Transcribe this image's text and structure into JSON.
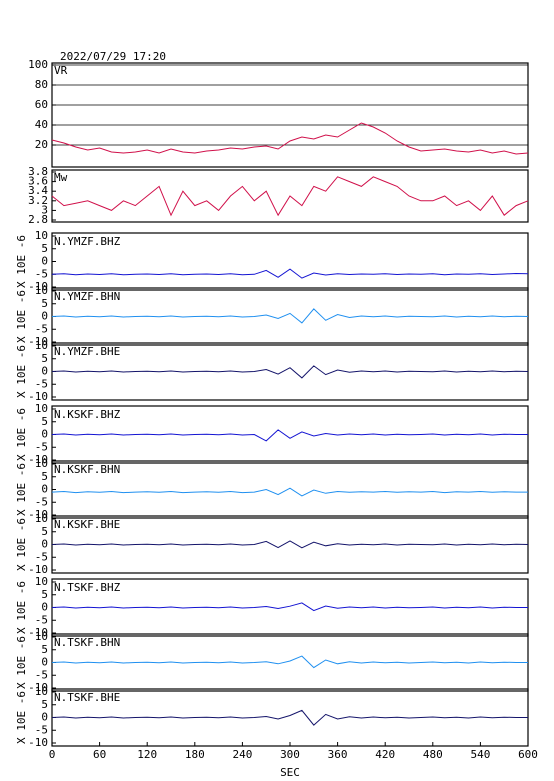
{
  "chart_data": [
    {
      "type": "line",
      "title": "2022/07/29 17:20",
      "grid": true,
      "xlim": [
        0,
        600
      ],
      "ylim": [
        0,
        100
      ],
      "yticks": [
        20,
        40,
        60,
        80,
        100
      ],
      "x": [
        0,
        15,
        30,
        45,
        60,
        75,
        90,
        105,
        120,
        135,
        150,
        165,
        180,
        195,
        210,
        225,
        240,
        255,
        270,
        285,
        300,
        315,
        330,
        345,
        360,
        375,
        390,
        405,
        420,
        435,
        450,
        465,
        480,
        495,
        510,
        525,
        540,
        555,
        570,
        585,
        600
      ],
      "series": [
        {
          "name": "VR",
          "color": "#d0104a",
          "values": [
            25,
            22,
            18,
            15,
            17,
            13,
            12,
            13,
            15,
            12,
            16,
            13,
            12,
            14,
            15,
            17,
            16,
            18,
            19,
            16,
            24,
            28,
            26,
            30,
            28,
            35,
            42,
            38,
            32,
            24,
            18,
            14,
            15,
            16,
            14,
            13,
            15,
            12,
            14,
            11,
            12
          ]
        }
      ]
    },
    {
      "type": "line",
      "xlim": [
        0,
        600
      ],
      "ylim": [
        2.8,
        3.8
      ],
      "yticks": [
        2.8,
        3.0,
        3.2,
        3.4,
        3.6,
        3.8
      ],
      "x": [
        0,
        15,
        30,
        45,
        60,
        75,
        90,
        105,
        120,
        135,
        150,
        165,
        180,
        195,
        210,
        225,
        240,
        255,
        270,
        285,
        300,
        315,
        330,
        345,
        360,
        375,
        390,
        405,
        420,
        435,
        450,
        465,
        480,
        495,
        510,
        525,
        540,
        555,
        570,
        585,
        600
      ],
      "series": [
        {
          "name": "Mw",
          "color": "#d0104a",
          "values": [
            3.3,
            3.1,
            3.15,
            3.2,
            3.1,
            3.0,
            3.2,
            3.1,
            3.3,
            3.5,
            2.9,
            3.4,
            3.1,
            3.2,
            3.0,
            3.3,
            3.5,
            3.2,
            3.4,
            2.9,
            3.3,
            3.1,
            3.5,
            3.4,
            3.7,
            3.6,
            3.5,
            3.7,
            3.6,
            3.5,
            3.3,
            3.2,
            3.2,
            3.3,
            3.1,
            3.2,
            3.0,
            3.3,
            2.9,
            3.1,
            3.2
          ]
        }
      ]
    },
    {
      "type": "line",
      "ylabel": "X 10E -6",
      "xlim": [
        0,
        600
      ],
      "ylim": [
        -10,
        10
      ],
      "yticks": [
        -10,
        -5,
        0,
        5,
        10
      ],
      "x": [
        0,
        15,
        30,
        45,
        60,
        75,
        90,
        105,
        120,
        135,
        150,
        165,
        180,
        195,
        210,
        225,
        240,
        255,
        270,
        285,
        300,
        315,
        330,
        345,
        360,
        375,
        390,
        405,
        420,
        435,
        450,
        465,
        480,
        495,
        510,
        525,
        540,
        555,
        570,
        585,
        600
      ],
      "series": [
        {
          "name": "N.YMZF.BHZ",
          "color": "#1414d2",
          "values": [
            -5,
            -4.8,
            -5.2,
            -4.9,
            -5.1,
            -4.8,
            -5.2,
            -5,
            -4.9,
            -5.1,
            -4.8,
            -5.2,
            -5,
            -4.9,
            -5.1,
            -4.8,
            -5.2,
            -5,
            -3.5,
            -6.2,
            -3,
            -6.5,
            -4.5,
            -5.3,
            -4.8,
            -5.1,
            -4.9,
            -5,
            -4.8,
            -5.1,
            -4.9,
            -5,
            -4.8,
            -5.2,
            -4.9,
            -5,
            -4.8,
            -5.1,
            -4.9,
            -4.7,
            -4.8
          ]
        }
      ]
    },
    {
      "type": "line",
      "ylabel": "X 10E -6",
      "xlim": [
        0,
        600
      ],
      "ylim": [
        -10,
        10
      ],
      "yticks": [
        -10,
        -5,
        0,
        5,
        10
      ],
      "x": [
        0,
        15,
        30,
        45,
        60,
        75,
        90,
        105,
        120,
        135,
        150,
        165,
        180,
        195,
        210,
        225,
        240,
        255,
        270,
        285,
        300,
        315,
        330,
        345,
        360,
        375,
        390,
        405,
        420,
        435,
        450,
        465,
        480,
        495,
        510,
        525,
        540,
        555,
        570,
        585,
        600
      ],
      "series": [
        {
          "name": "N.YMZF.BHN",
          "color": "#2090f0",
          "values": [
            0,
            0.2,
            -0.2,
            0.1,
            -0.1,
            0.2,
            -0.2,
            0,
            0.1,
            -0.1,
            0.2,
            -0.2,
            0,
            0.1,
            -0.1,
            0.2,
            -0.2,
            0,
            0.6,
            -0.8,
            1.2,
            -2.5,
            3,
            -1.5,
            0.8,
            -0.4,
            0.2,
            -0.1,
            0.2,
            -0.2,
            0.1,
            0,
            -0.1,
            0.2,
            -0.2,
            0.1,
            -0.1,
            0.2,
            -0.1,
            0.1,
            0
          ]
        }
      ]
    },
    {
      "type": "line",
      "ylabel": "X 10E -6",
      "xlim": [
        0,
        600
      ],
      "ylim": [
        -10,
        10
      ],
      "yticks": [
        -10,
        -5,
        0,
        5,
        10
      ],
      "x": [
        0,
        15,
        30,
        45,
        60,
        75,
        90,
        105,
        120,
        135,
        150,
        165,
        180,
        195,
        210,
        225,
        240,
        255,
        270,
        285,
        300,
        315,
        330,
        345,
        360,
        375,
        390,
        405,
        420,
        435,
        450,
        465,
        480,
        495,
        510,
        525,
        540,
        555,
        570,
        585,
        600
      ],
      "series": [
        {
          "name": "N.YMZF.BHE",
          "color": "#14146a",
          "values": [
            0,
            0.2,
            -0.2,
            0.1,
            -0.1,
            0.2,
            -0.2,
            0,
            0.1,
            -0.1,
            0.2,
            -0.2,
            0,
            0.1,
            -0.1,
            0.2,
            -0.2,
            0,
            0.8,
            -1,
            1.5,
            -2.5,
            2.2,
            -1.2,
            0.6,
            -0.3,
            0.2,
            -0.1,
            0.2,
            -0.2,
            0.1,
            0,
            -0.1,
            0.2,
            -0.2,
            0.1,
            -0.1,
            0.2,
            -0.1,
            0.1,
            0
          ]
        }
      ]
    },
    {
      "type": "line",
      "ylabel": "X 10E -6",
      "xlim": [
        0,
        600
      ],
      "ylim": [
        -10,
        10
      ],
      "yticks": [
        -10,
        -5,
        0,
        5,
        10
      ],
      "x": [
        0,
        15,
        30,
        45,
        60,
        75,
        90,
        105,
        120,
        135,
        150,
        165,
        180,
        195,
        210,
        225,
        240,
        255,
        270,
        285,
        300,
        315,
        330,
        345,
        360,
        375,
        390,
        405,
        420,
        435,
        450,
        465,
        480,
        495,
        510,
        525,
        540,
        555,
        570,
        585,
        600
      ],
      "series": [
        {
          "name": "N.KSKF.BHZ",
          "color": "#1414d2",
          "values": [
            0,
            0.2,
            -0.2,
            0.1,
            -0.1,
            0.2,
            -0.2,
            0,
            0.1,
            -0.1,
            0.2,
            -0.2,
            0,
            0.1,
            -0.1,
            0.2,
            -0.2,
            0,
            -2.5,
            1.8,
            -1.5,
            1,
            -0.6,
            0.4,
            -0.2,
            0.2,
            -0.1,
            0.2,
            -0.2,
            0.1,
            -0.1,
            0,
            0.2,
            -0.2,
            0.1,
            -0.1,
            0.2,
            -0.2,
            0.1,
            0,
            0
          ]
        }
      ]
    },
    {
      "type": "line",
      "ylabel": "X 10E -6",
      "xlim": [
        0,
        600
      ],
      "ylim": [
        -10,
        10
      ],
      "yticks": [
        -10,
        -5,
        0,
        5,
        10
      ],
      "x": [
        0,
        15,
        30,
        45,
        60,
        75,
        90,
        105,
        120,
        135,
        150,
        165,
        180,
        195,
        210,
        225,
        240,
        255,
        270,
        285,
        300,
        315,
        330,
        345,
        360,
        375,
        390,
        405,
        420,
        435,
        450,
        465,
        480,
        495,
        510,
        525,
        540,
        555,
        570,
        585,
        600
      ],
      "series": [
        {
          "name": "N.KSKF.BHN",
          "color": "#2090f0",
          "values": [
            -1,
            -0.8,
            -1.2,
            -0.9,
            -1.1,
            -0.8,
            -1.2,
            -1,
            -0.9,
            -1.1,
            -0.8,
            -1.2,
            -1,
            -0.9,
            -1.1,
            -0.8,
            -1.2,
            -1,
            0,
            -2,
            0.5,
            -2.5,
            -0.2,
            -1.5,
            -0.8,
            -1.1,
            -0.9,
            -1,
            -0.8,
            -1.1,
            -0.9,
            -1,
            -0.8,
            -1.2,
            -0.9,
            -1,
            -0.8,
            -1.1,
            -0.9,
            -1,
            -1
          ]
        }
      ]
    },
    {
      "type": "line",
      "ylabel": "X 10E -6",
      "xlim": [
        0,
        600
      ],
      "ylim": [
        -10,
        10
      ],
      "yticks": [
        -10,
        -5,
        0,
        5,
        10
      ],
      "x": [
        0,
        15,
        30,
        45,
        60,
        75,
        90,
        105,
        120,
        135,
        150,
        165,
        180,
        195,
        210,
        225,
        240,
        255,
        270,
        285,
        300,
        315,
        330,
        345,
        360,
        375,
        390,
        405,
        420,
        435,
        450,
        465,
        480,
        495,
        510,
        525,
        540,
        555,
        570,
        585,
        600
      ],
      "series": [
        {
          "name": "N.KSKF.BHE",
          "color": "#14146a",
          "values": [
            0,
            0.2,
            -0.2,
            0.1,
            -0.1,
            0.2,
            -0.2,
            0,
            0.1,
            -0.1,
            0.2,
            -0.2,
            0,
            0.1,
            -0.1,
            0.2,
            -0.2,
            0,
            1.2,
            -1.2,
            1.4,
            -1.3,
            0.9,
            -0.5,
            0.3,
            -0.2,
            0.1,
            -0.1,
            0.2,
            -0.2,
            0.1,
            0,
            -0.1,
            0.2,
            -0.2,
            0.1,
            -0.1,
            0.2,
            -0.1,
            0.1,
            0
          ]
        }
      ]
    },
    {
      "type": "line",
      "ylabel": "X 10E -6",
      "xlim": [
        0,
        600
      ],
      "ylim": [
        -10,
        10
      ],
      "yticks": [
        -10,
        -5,
        0,
        5,
        10
      ],
      "x": [
        0,
        15,
        30,
        45,
        60,
        75,
        90,
        105,
        120,
        135,
        150,
        165,
        180,
        195,
        210,
        225,
        240,
        255,
        270,
        285,
        300,
        315,
        330,
        345,
        360,
        375,
        390,
        405,
        420,
        435,
        450,
        465,
        480,
        495,
        510,
        525,
        540,
        555,
        570,
        585,
        600
      ],
      "series": [
        {
          "name": "N.TSKF.BHZ",
          "color": "#1414d2",
          "values": [
            0,
            0.2,
            -0.2,
            0.1,
            -0.1,
            0.2,
            -0.2,
            0,
            0.1,
            -0.1,
            0.2,
            -0.2,
            0,
            0.1,
            -0.1,
            0.2,
            -0.2,
            0,
            0.4,
            -0.4,
            0.5,
            1.8,
            -1.2,
            0.6,
            -0.3,
            0.2,
            -0.1,
            0.2,
            -0.2,
            0.1,
            -0.1,
            0,
            0.2,
            -0.2,
            0.1,
            -0.1,
            0.2,
            -0.2,
            0.1,
            0,
            0
          ]
        }
      ]
    },
    {
      "type": "line",
      "ylabel": "X 10E -6",
      "xlim": [
        0,
        600
      ],
      "ylim": [
        -10,
        10
      ],
      "yticks": [
        -10,
        -5,
        0,
        5,
        10
      ],
      "x": [
        0,
        15,
        30,
        45,
        60,
        75,
        90,
        105,
        120,
        135,
        150,
        165,
        180,
        195,
        210,
        225,
        240,
        255,
        270,
        285,
        300,
        315,
        330,
        345,
        360,
        375,
        390,
        405,
        420,
        435,
        450,
        465,
        480,
        495,
        510,
        525,
        540,
        555,
        570,
        585,
        600
      ],
      "series": [
        {
          "name": "N.TSKF.BHN",
          "color": "#2090f0",
          "values": [
            0,
            0.2,
            -0.2,
            0.1,
            -0.1,
            0.2,
            -0.2,
            0,
            0.1,
            -0.1,
            0.2,
            -0.2,
            0,
            0.1,
            -0.1,
            0.2,
            -0.2,
            0,
            0.3,
            -0.5,
            0.6,
            2.5,
            -2,
            1,
            -0.5,
            0.3,
            -0.2,
            0.2,
            -0.1,
            0.1,
            -0.2,
            0,
            0.2,
            -0.1,
            0.1,
            -0.2,
            0.2,
            -0.1,
            0.1,
            0,
            0
          ]
        }
      ]
    },
    {
      "type": "line",
      "ylabel": "X 10E -6",
      "xlabel": "SEC",
      "xlim": [
        0,
        600
      ],
      "ylim": [
        -10,
        10
      ],
      "yticks": [
        -10,
        -5,
        0,
        5,
        10
      ],
      "xticks": [
        0,
        60,
        120,
        180,
        240,
        300,
        360,
        420,
        480,
        540,
        600
      ],
      "x": [
        0,
        15,
        30,
        45,
        60,
        75,
        90,
        105,
        120,
        135,
        150,
        165,
        180,
        195,
        210,
        225,
        240,
        255,
        270,
        285,
        300,
        315,
        330,
        345,
        360,
        375,
        390,
        405,
        420,
        435,
        450,
        465,
        480,
        495,
        510,
        525,
        540,
        555,
        570,
        585,
        600
      ],
      "series": [
        {
          "name": "N.TSKF.BHE",
          "color": "#14146a",
          "values": [
            0,
            0.2,
            -0.2,
            0.1,
            -0.1,
            0.2,
            -0.2,
            0,
            0.1,
            -0.1,
            0.2,
            -0.2,
            0,
            0.1,
            -0.1,
            0.2,
            -0.2,
            0,
            0.4,
            -0.6,
            0.8,
            2.8,
            -3,
            1.2,
            -0.6,
            0.3,
            -0.2,
            0.2,
            -0.1,
            0.1,
            -0.2,
            0,
            0.2,
            -0.1,
            0.1,
            -0.2,
            0.2,
            -0.1,
            0.1,
            0,
            0
          ]
        }
      ]
    }
  ]
}
